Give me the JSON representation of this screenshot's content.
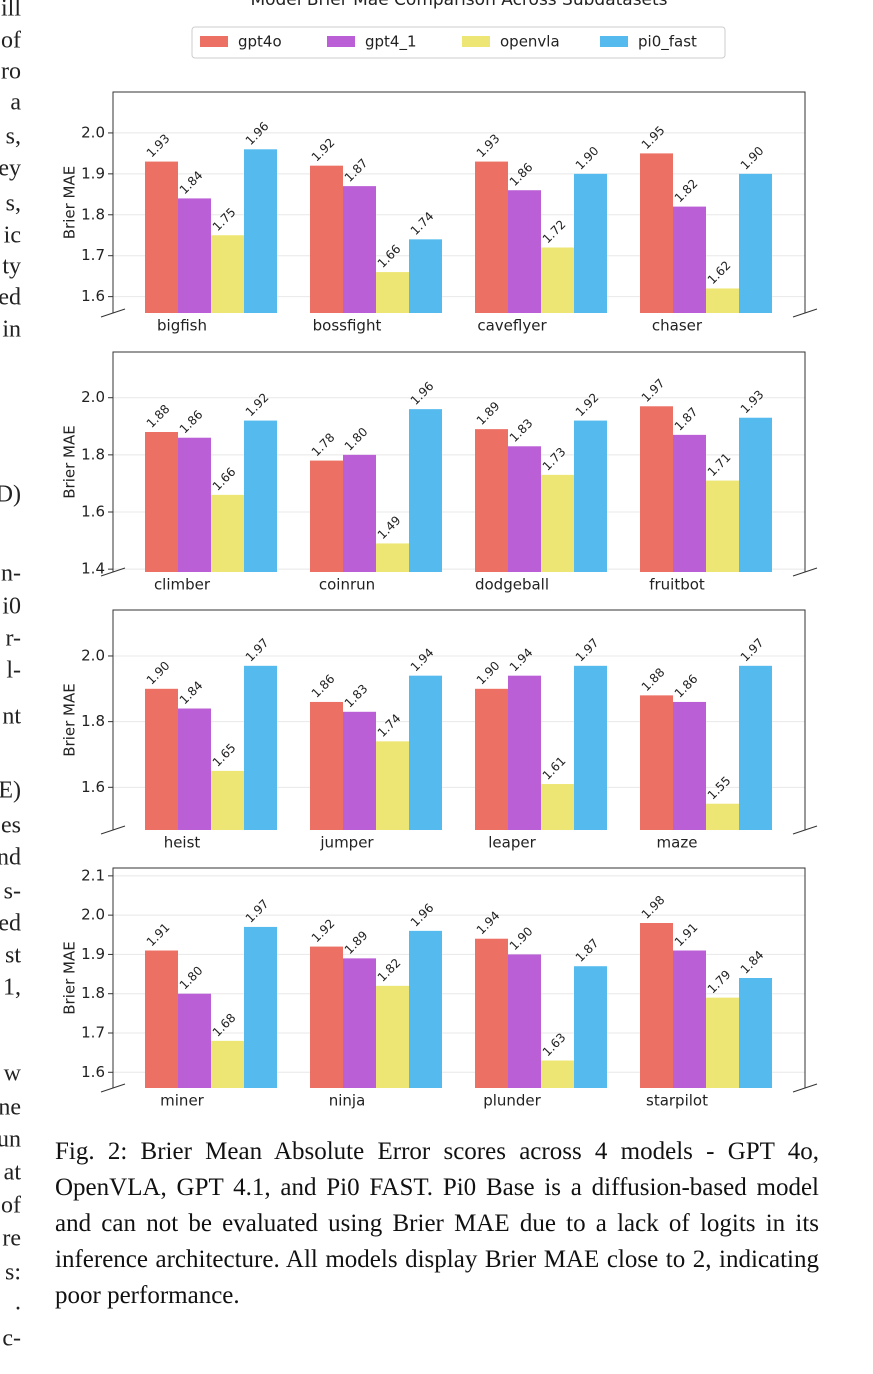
{
  "left_column_fragments": [
    "ill",
    "of",
    "ro",
    "a",
    "s,",
    "ey",
    "s,",
    "ic",
    "ty",
    "ed",
    "in",
    "D)",
    "n-",
    "i0",
    "r-",
    "l-",
    "nt",
    "E)",
    "es",
    "nd",
    "s-",
    "ed",
    "st",
    "1,",
    "w",
    "ne",
    "un",
    "at",
    "of",
    "re",
    "s:",
    ".",
    "c-"
  ],
  "chart_data": [
    {
      "type": "bar",
      "title": "Model Brier Mae Comparison Across Subdatasets",
      "ylabel": "Brier MAE",
      "grid": true,
      "categories": [
        "bigfish",
        "bossfight",
        "caveflyer",
        "chaser"
      ],
      "series": [
        {
          "name": "gpt4o",
          "color": "#ec7063",
          "values": [
            1.93,
            1.92,
            1.93,
            1.95
          ],
          "value_labels": [
            "1.93",
            "1.92",
            "1.93",
            "1.95"
          ]
        },
        {
          "name": "gpt4_1",
          "color": "#bb5fd6",
          "values": [
            1.84,
            1.87,
            1.86,
            1.82
          ],
          "value_labels": [
            "1.84",
            "1.87",
            "1.86",
            "1.82"
          ]
        },
        {
          "name": "openvla",
          "color": "#ede674",
          "values": [
            1.75,
            1.66,
            1.72,
            1.62
          ],
          "value_labels": [
            "1.75",
            "1.66",
            "1.72",
            "1.62"
          ]
        },
        {
          "name": "pi0_fast",
          "color": "#55bbee",
          "values": [
            1.96,
            1.74,
            1.9,
            1.9
          ],
          "value_labels": [
            "1.96",
            "1.74",
            "1.90",
            "1.90"
          ]
        }
      ],
      "ylim": [
        1.56,
        2.1
      ],
      "yticks": [
        1.6,
        1.7,
        1.8,
        1.9,
        {
          "value": 2.0,
          "label": "2.0"
        }
      ]
    },
    {
      "type": "bar",
      "ylabel": "Brier MAE",
      "grid": true,
      "categories": [
        "climber",
        "coinrun",
        "dodgeball",
        "fruitbot"
      ],
      "series": [
        {
          "name": "gpt4o",
          "color": "#ec7063",
          "values": [
            1.88,
            1.78,
            1.89,
            1.97
          ],
          "value_labels": [
            "1.88",
            "1.78",
            "1.89",
            "1.97"
          ]
        },
        {
          "name": "gpt4_1",
          "color": "#bb5fd6",
          "values": [
            1.86,
            1.8,
            1.83,
            1.87
          ],
          "value_labels": [
            "1.86",
            "1.80",
            "1.83",
            "1.87"
          ]
        },
        {
          "name": "openvla",
          "color": "#ede674",
          "values": [
            1.66,
            1.49,
            1.73,
            1.71
          ],
          "value_labels": [
            "1.66",
            "1.49",
            "1.73",
            "1.71"
          ]
        },
        {
          "name": "pi0_fast",
          "color": "#55bbee",
          "values": [
            1.92,
            1.96,
            1.92,
            1.93
          ],
          "value_labels": [
            "1.92",
            "1.96",
            "1.92",
            "1.93"
          ]
        }
      ],
      "ylim": [
        1.39,
        2.16
      ],
      "yticks": [
        1.4,
        1.6,
        1.8,
        {
          "value": 2.0,
          "label": "2.0"
        }
      ]
    },
    {
      "type": "bar",
      "ylabel": "Brier MAE",
      "grid": true,
      "categories": [
        "heist",
        "jumper",
        "leaper",
        "maze"
      ],
      "series": [
        {
          "name": "gpt4o",
          "color": "#ec7063",
          "values": [
            1.9,
            1.86,
            1.9,
            1.88
          ],
          "value_labels": [
            "1.90",
            "1.86",
            "1.90",
            "1.88"
          ]
        },
        {
          "name": "gpt4_1",
          "color": "#bb5fd6",
          "values": [
            1.84,
            1.83,
            1.94,
            1.86
          ],
          "value_labels": [
            "1.84",
            "1.83",
            "1.94",
            "1.86"
          ]
        },
        {
          "name": "openvla",
          "color": "#ede674",
          "values": [
            1.65,
            1.74,
            1.61,
            1.55
          ],
          "value_labels": [
            "1.65",
            "1.74",
            "1.61",
            "1.55"
          ]
        },
        {
          "name": "pi0_fast",
          "color": "#55bbee",
          "values": [
            1.97,
            1.94,
            1.97,
            1.97
          ],
          "value_labels": [
            "1.97",
            "1.94",
            "1.97",
            "1.97"
          ]
        }
      ],
      "ylim": [
        1.47,
        2.14
      ],
      "yticks": [
        1.6,
        1.8,
        {
          "value": 2.0,
          "label": "2.0"
        }
      ]
    },
    {
      "type": "bar",
      "ylabel": "Brier MAE",
      "grid": true,
      "categories": [
        "miner",
        "ninja",
        "plunder",
        "starpilot"
      ],
      "series": [
        {
          "name": "gpt4o",
          "color": "#ec7063",
          "values": [
            1.91,
            1.92,
            1.94,
            1.98
          ],
          "value_labels": [
            "1.91",
            "1.92",
            "1.94",
            "1.98"
          ]
        },
        {
          "name": "gpt4_1",
          "color": "#bb5fd6",
          "values": [
            1.8,
            1.89,
            1.9,
            1.91
          ],
          "value_labels": [
            "1.80",
            "1.89",
            "1.90",
            "1.91"
          ]
        },
        {
          "name": "openvla",
          "color": "#ede674",
          "values": [
            1.68,
            1.82,
            1.63,
            1.79
          ],
          "value_labels": [
            "1.68",
            "1.82",
            "1.63",
            "1.79"
          ]
        },
        {
          "name": "pi0_fast",
          "color": "#55bbee",
          "values": [
            1.97,
            1.96,
            1.87,
            1.84
          ],
          "value_labels": [
            "1.97",
            "1.96",
            "1.87",
            "1.84"
          ]
        }
      ],
      "ylim": [
        1.56,
        2.12
      ],
      "yticks": [
        1.6,
        1.7,
        1.8,
        1.9,
        {
          "value": 2.0,
          "label": "2.0"
        },
        2.1
      ]
    }
  ],
  "caption": "Fig. 2: Brier Mean Absolute Error scores across 4 models - GPT 4o, OpenVLA, GPT 4.1, and Pi0 FAST. Pi0 Base is a diffusion-based model and can not be evaluated using Brier MAE due to a lack of logits in its inference architecture. All models display Brier MAE close to 2, indicating poor performance."
}
